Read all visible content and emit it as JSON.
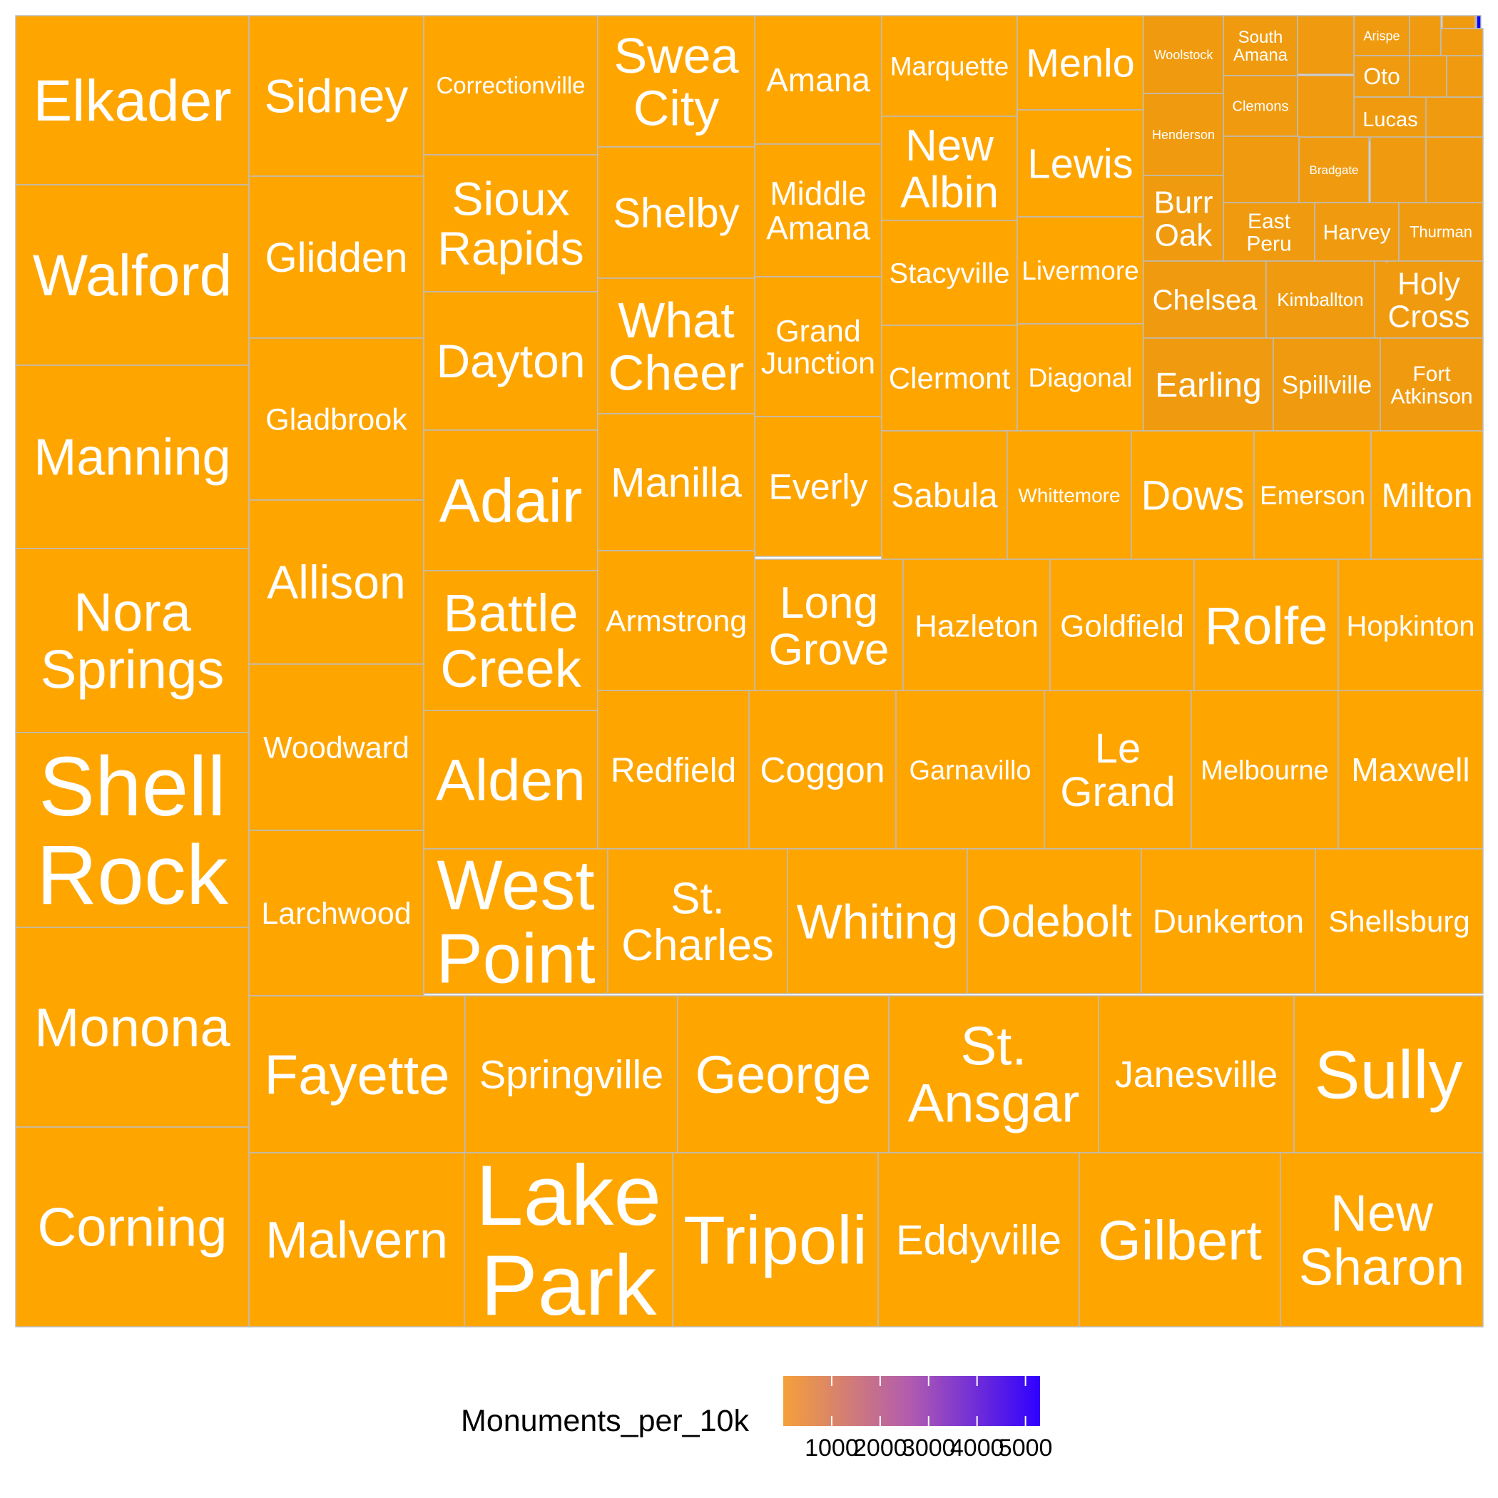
{
  "chart_data": {
    "type": "treemap",
    "value_field": "Monuments_per_10k",
    "color_scale": {
      "low_color": "#ffa500",
      "high_color": "#0000ff",
      "range": [
        0,
        5300
      ]
    },
    "legend": {
      "title": "Monuments_per_10k",
      "ticks": [
        1000,
        2000,
        3000,
        4000,
        5000
      ],
      "tick_labels": [
        "1000",
        "2000",
        "3000",
        "4000",
        "5000"
      ],
      "placement": "bottom"
    },
    "tiles": [
      {
        "label": "Elkader",
        "value": 3.5
      },
      {
        "label": "Walford",
        "value": 3.5
      },
      {
        "label": "Manning",
        "value": 3.5
      },
      {
        "label": "Nora Springs",
        "value": 3.6
      },
      {
        "label": "Shell Rock",
        "value": 3.8
      },
      {
        "label": "Monona",
        "value": 3.9
      },
      {
        "label": "Corning",
        "value": 3.9
      },
      {
        "label": "Sidney",
        "value": 3.6
      },
      {
        "label": "Glidden",
        "value": 3.6
      },
      {
        "label": "Gladbrook",
        "value": 3.6
      },
      {
        "label": "Allison",
        "value": 3.6
      },
      {
        "label": "Woodward",
        "value": 3.6
      },
      {
        "label": "Larchwood",
        "value": 3.6
      },
      {
        "label": "Correctionville",
        "value": 4.0
      },
      {
        "label": "Sioux Rapids",
        "value": 4.0
      },
      {
        "label": "Dayton",
        "value": 4.0
      },
      {
        "label": "Adair",
        "value": 4.0
      },
      {
        "label": "Battle Creek",
        "value": 4.0
      },
      {
        "label": "Alden",
        "value": 4.0
      },
      {
        "label": "Swea City",
        "value": 4.4
      },
      {
        "label": "Shelby",
        "value": 4.4
      },
      {
        "label": "What Cheer",
        "value": 4.4
      },
      {
        "label": "Manilla",
        "value": 4.4
      },
      {
        "label": "Armstrong",
        "value": 4.4
      },
      {
        "label": "Amana",
        "value": 4.5
      },
      {
        "label": "Middle Amana",
        "value": 4.5
      },
      {
        "label": "Grand Junction",
        "value": 4.5
      },
      {
        "label": "Everly",
        "value": 4.5
      },
      {
        "label": "Marquette",
        "value": 4.6
      },
      {
        "label": "New Albin",
        "value": 4.6
      },
      {
        "label": "Stacyville",
        "value": 4.6
      },
      {
        "label": "Clermont",
        "value": 4.6
      },
      {
        "label": "Menlo",
        "value": 4.7
      },
      {
        "label": "Lewis",
        "value": 4.7
      },
      {
        "label": "Livermore",
        "value": 4.7
      },
      {
        "label": "Diagonal",
        "value": 4.7
      },
      {
        "label": "Woolstock",
        "value": 6
      },
      {
        "label": "Henderson",
        "value": 6
      },
      {
        "label": "Burr Oak",
        "value": 6
      },
      {
        "label": "South Amana",
        "value": 7
      },
      {
        "label": "Clemons",
        "value": 7
      },
      {
        "label": "Arispe",
        "value": 10
      },
      {
        "label": "Oto",
        "value": 10
      },
      {
        "label": "Lucas",
        "value": 10
      },
      {
        "label": "Bradgate",
        "value": 8
      },
      {
        "label": "East Peru",
        "value": 8
      },
      {
        "label": "Harvey",
        "value": 8
      },
      {
        "label": "Thurman",
        "value": 8
      },
      {
        "label": "Chelsea",
        "value": 5.2
      },
      {
        "label": "Kimballton",
        "value": 5.2
      },
      {
        "label": "Holy Cross",
        "value": 5.2
      },
      {
        "label": "Earling",
        "value": 5.3
      },
      {
        "label": "Spillville",
        "value": 5.3
      },
      {
        "label": "Fort Atkinson",
        "value": 5.3
      },
      {
        "label": "Sabula",
        "value": 4.8
      },
      {
        "label": "Whittemore",
        "value": 4.8
      },
      {
        "label": "Dows",
        "value": 4.8
      },
      {
        "label": "Emerson",
        "value": 4.8
      },
      {
        "label": "Milton",
        "value": 4.8
      },
      {
        "label": "Long Grove",
        "value": 4.3
      },
      {
        "label": "Hazleton",
        "value": 4.3
      },
      {
        "label": "Goldfield",
        "value": 4.3
      },
      {
        "label": "Rolfe",
        "value": 4.3
      },
      {
        "label": "Hopkinton",
        "value": 4.3
      },
      {
        "label": "Redfield",
        "value": 4.1
      },
      {
        "label": "Coggon",
        "value": 4.1
      },
      {
        "label": "Garnavillo",
        "value": 4.1
      },
      {
        "label": "Le Grand",
        "value": 4.1
      },
      {
        "label": "Melbourne",
        "value": 4.1
      },
      {
        "label": "Maxwell",
        "value": 4.1
      },
      {
        "label": "West Point",
        "value": 3.9
      },
      {
        "label": "St. Charles",
        "value": 3.9
      },
      {
        "label": "Whiting",
        "value": 3.9
      },
      {
        "label": "Odebolt",
        "value": 3.9
      },
      {
        "label": "Dunkerton",
        "value": 3.9
      },
      {
        "label": "Shellsburg",
        "value": 3.9
      },
      {
        "label": "Fayette",
        "value": 3.7
      },
      {
        "label": "Springville",
        "value": 3.7
      },
      {
        "label": "George",
        "value": 3.7
      },
      {
        "label": "St. Ansgar",
        "value": 3.7
      },
      {
        "label": "Janesville",
        "value": 3.7
      },
      {
        "label": "Sully",
        "value": 3.7
      },
      {
        "label": "Malvern",
        "value": 3.6
      },
      {
        "label": "Lake Park",
        "value": 3.6
      },
      {
        "label": "Tripoli",
        "value": 3.6
      },
      {
        "label": "Eddyville",
        "value": 3.6
      },
      {
        "label": "Gilbert",
        "value": 3.6
      },
      {
        "label": "New Sharon",
        "value": 3.6
      },
      {
        "label": "",
        "value": 12
      },
      {
        "label": "",
        "value": 12
      },
      {
        "label": "",
        "value": 12
      },
      {
        "label": "",
        "value": 12
      },
      {
        "label": "",
        "value": 12
      },
      {
        "label": "",
        "value": 12
      },
      {
        "label": "",
        "value": 12
      },
      {
        "label": "",
        "value": 12
      },
      {
        "label": "",
        "value": 12
      },
      {
        "label": "",
        "value": 12
      },
      {
        "label": "",
        "value": 12
      },
      {
        "label": "",
        "value": 12
      },
      {
        "label": "",
        "value": 12
      },
      {
        "label": "",
        "value": 12
      },
      {
        "label": "",
        "value": 150
      },
      {
        "label": "",
        "value": 5200
      }
    ]
  }
}
